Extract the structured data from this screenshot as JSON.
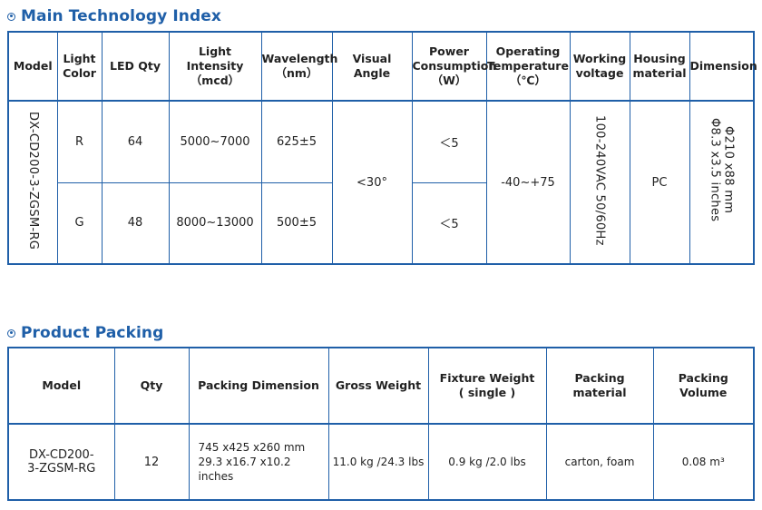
{
  "tech": {
    "title": "Main Technology Index",
    "headers": {
      "model": "Model",
      "light_color": [
        "Light",
        "Color"
      ],
      "led_qty": "LED Qty",
      "intensity": [
        "Light Intensity",
        "（mcd）"
      ],
      "wavelength": [
        "Wavelength",
        "（nm）"
      ],
      "visual_angle": "Visual Angle",
      "power": [
        "Power",
        "Consumption",
        "（W）"
      ],
      "temperature": [
        "Operating",
        "Temperature",
        "（℃）"
      ],
      "voltage": [
        "Working",
        "voltage"
      ],
      "housing": [
        "Housing",
        "material"
      ],
      "dimension": "Dimension"
    },
    "model": "DX-CD200-3-ZGSM-RG",
    "rows": [
      {
        "color": "R",
        "qty": "64",
        "intensity": "5000~7000",
        "wavelength": "625±5",
        "power": "＜5"
      },
      {
        "color": "G",
        "qty": "48",
        "intensity": "8000~13000",
        "wavelength": "500±5",
        "power": "＜5"
      }
    ],
    "visual_angle": "<30°",
    "temperature": "-40~+75",
    "voltage": "100-240VAC 50/60Hz",
    "housing": "PC",
    "dimension": [
      "Φ210 x88 mm",
      "Φ8.3 x3.5 inches"
    ]
  },
  "packing": {
    "title": "Product Packing",
    "headers": {
      "model": "Model",
      "qty": "Qty",
      "dimension": "Packing Dimension",
      "gross": "Gross Weight",
      "fixture": [
        "Fixture Weight",
        "( single )"
      ],
      "material": "Packing material",
      "volume": "Packing Volume"
    },
    "row": {
      "model": [
        "DX-CD200-",
        "3-ZGSM-RG"
      ],
      "qty": "12",
      "dimension": [
        "745 x425 x260 mm",
        "29.3 x16.7 x10.2 inches"
      ],
      "gross": "11.0 kg /24.3 lbs",
      "fixture": "0.9 kg /2.0 lbs",
      "material": "carton, foam",
      "volume": "0.08 m³"
    }
  }
}
